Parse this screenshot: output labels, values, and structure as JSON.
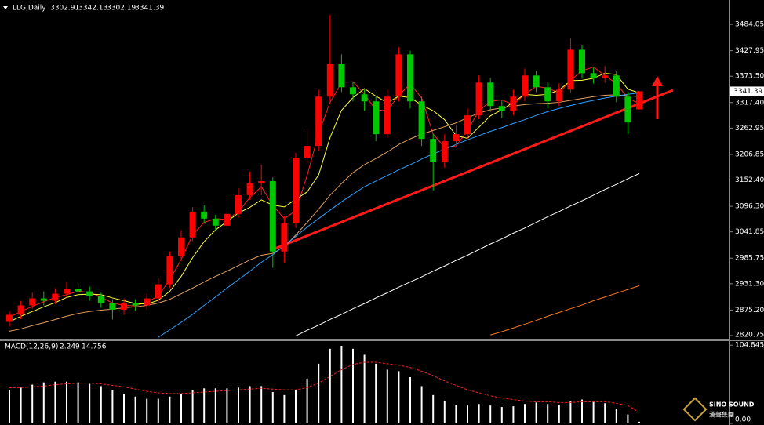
{
  "chart_data": [
    {
      "type": "candlestick",
      "title": "LLG,Daily",
      "up_color": "#ff0000",
      "down_color": "#00c800",
      "open": [
        2850,
        2865,
        2885,
        2900,
        2895,
        2910,
        2920,
        2915,
        2905,
        2890,
        2876,
        2890,
        2885,
        2900,
        2930,
        2990,
        3030,
        3085,
        3070,
        3055,
        3080,
        3120,
        3145,
        3150,
        3000,
        3060,
        3200,
        3225,
        3330,
        3400,
        3350,
        3335,
        3320,
        3250,
        3330,
        3420,
        3320,
        3240,
        3190,
        3235,
        3250,
        3290,
        3360,
        3310,
        3300,
        3330,
        3375,
        3350,
        3320,
        3345,
        3430,
        3380,
        3370,
        3375,
        3330,
        3302.91
      ],
      "high": [
        2872,
        2895,
        2912,
        2915,
        2922,
        2935,
        2932,
        2925,
        2912,
        2898,
        2900,
        2898,
        2910,
        2942,
        3000,
        3045,
        3095,
        3098,
        3078,
        3092,
        3135,
        3170,
        3185,
        3158,
        3075,
        3210,
        3262,
        3345,
        3504,
        3420,
        3362,
        3345,
        3330,
        3345,
        3435,
        3428,
        3330,
        3250,
        3250,
        3268,
        3305,
        3375,
        3370,
        3322,
        3345,
        3390,
        3385,
        3360,
        3358,
        3455,
        3440,
        3392,
        3395,
        3385,
        3340,
        3342.13
      ],
      "low": [
        2840,
        2856,
        2878,
        2885,
        2888,
        2902,
        2905,
        2895,
        2880,
        2855,
        2865,
        2874,
        2876,
        2892,
        2922,
        2980,
        3022,
        3060,
        3045,
        3048,
        3072,
        3110,
        3120,
        2965,
        2975,
        3050,
        3188,
        3215,
        3320,
        3340,
        3320,
        3300,
        3235,
        3242,
        3320,
        3305,
        3225,
        3130,
        3178,
        3225,
        3240,
        3282,
        3298,
        3285,
        3290,
        3320,
        3340,
        3305,
        3310,
        3338,
        3368,
        3358,
        3360,
        3318,
        3250,
        3302.19
      ],
      "close": [
        2865,
        2885,
        2900,
        2895,
        2910,
        2920,
        2915,
        2905,
        2890,
        2876,
        2890,
        2885,
        2900,
        2930,
        2990,
        3030,
        3085,
        3070,
        3055,
        3080,
        3120,
        3145,
        3150,
        3000,
        3060,
        3200,
        3225,
        3330,
        3400,
        3350,
        3335,
        3320,
        3250,
        3330,
        3420,
        3320,
        3240,
        3190,
        3235,
        3250,
        3290,
        3360,
        3310,
        3300,
        3330,
        3375,
        3350,
        3320,
        3345,
        3430,
        3380,
        3370,
        3375,
        3330,
        3275,
        3341.39
      ],
      "series": [
        {
          "color": "#ff2020",
          "values": [
            2860,
            2872,
            2883,
            2893,
            2902,
            2908,
            2915,
            2913,
            2903,
            2890,
            2885,
            2884,
            2892,
            2905,
            2940,
            2983,
            3035,
            3062,
            3070,
            3068,
            3085,
            3115,
            3138,
            3098,
            3070,
            3087,
            3162,
            3252,
            3318,
            3360,
            3362,
            3335,
            3302,
            3300,
            3333,
            3357,
            3327,
            3250,
            3222,
            3225,
            3258,
            3300,
            3320,
            3323,
            3313,
            3335,
            3352,
            3348,
            3338,
            3365,
            3385,
            3393,
            3375,
            3358,
            3327,
            3315
          ]
        },
        {
          "color": "#ffff40",
          "values": [
            2850,
            2862,
            2872,
            2882,
            2891,
            2902,
            2908,
            2909,
            2908,
            2901,
            2895,
            2889,
            2888,
            2896,
            2915,
            2947,
            2987,
            3021,
            3046,
            3064,
            3082,
            3094,
            3110,
            3099,
            3095,
            3111,
            3127,
            3163,
            3243,
            3301,
            3328,
            3347,
            3331,
            3317,
            3331,
            3328,
            3312,
            3300,
            3281,
            3247,
            3241,
            3265,
            3289,
            3302,
            3318,
            3335,
            3333,
            3335,
            3344,
            3364,
            3365,
            3369,
            3380,
            3377,
            3346,
            3338
          ]
        },
        {
          "color": "#e0a060",
          "values": [
            2830,
            2835,
            2842,
            2848,
            2855,
            2862,
            2868,
            2872,
            2875,
            2877,
            2880,
            2882,
            2885,
            2890,
            2898,
            2910,
            2922,
            2935,
            2947,
            2958,
            2970,
            2982,
            2992,
            2996,
            3010,
            3035,
            3062,
            3090,
            3120,
            3145,
            3168,
            3185,
            3198,
            3212,
            3228,
            3240,
            3250,
            3258,
            3266,
            3274,
            3285,
            3295,
            3302,
            3306,
            3310,
            3313,
            3315,
            3316,
            3318,
            3322,
            3326,
            3330,
            3333,
            3334,
            3332,
            3330
          ]
        },
        {
          "color": "#30a0ff",
          "values": [
            null,
            null,
            null,
            null,
            null,
            null,
            null,
            null,
            null,
            null,
            null,
            null,
            null,
            2817,
            2833,
            2849,
            2866,
            2885,
            2903,
            2922,
            2940,
            2958,
            2977,
            2993,
            3013,
            3032,
            3052,
            3070,
            3088,
            3106,
            3122,
            3138,
            3150,
            3162,
            3174,
            3185,
            3197,
            3208,
            3218,
            3228,
            3238,
            3247,
            3256,
            3264,
            3273,
            3281,
            3290,
            3298,
            3305,
            3311,
            3317,
            3322,
            3327,
            3331,
            3335,
            3338
          ]
        },
        {
          "color": "#ffffff",
          "values": [
            null,
            null,
            null,
            null,
            null,
            null,
            null,
            null,
            null,
            null,
            null,
            null,
            null,
            null,
            null,
            null,
            null,
            null,
            null,
            null,
            null,
            null,
            null,
            null,
            null,
            2820,
            2832,
            2843,
            2855,
            2866,
            2878,
            2889,
            2901,
            2912,
            2924,
            2935,
            2946,
            2958,
            2969,
            2981,
            2992,
            3004,
            3016,
            3027,
            3039,
            3050,
            3062,
            3074,
            3085,
            3097,
            3108,
            3120,
            3132,
            3143,
            3155,
            3166
          ]
        },
        {
          "color": "#ff7a20",
          "values": [
            null,
            null,
            null,
            null,
            null,
            null,
            null,
            null,
            null,
            null,
            null,
            null,
            null,
            null,
            null,
            null,
            null,
            null,
            null,
            null,
            null,
            null,
            null,
            null,
            null,
            null,
            null,
            null,
            null,
            null,
            null,
            null,
            null,
            null,
            null,
            null,
            null,
            null,
            null,
            null,
            null,
            null,
            2822,
            2829,
            2837,
            2845,
            2853,
            2862,
            2870,
            2878,
            2886,
            2895,
            2903,
            2911,
            2919,
            2927
          ]
        }
      ],
      "ylim": [
        2814,
        3536
      ],
      "yticks": [
        3484.05,
        3427.95,
        {
          "value": 3373.5,
          "label": "3373.50"
        },
        {
          "value": 3317.4,
          "label": "3317.40"
        },
        3262.95,
        3206.85,
        {
          "value": 3152.4,
          "label": "3152.40"
        },
        {
          "value": 3096.3,
          "label": "3096.30"
        },
        3041.85,
        2985.75,
        {
          "value": 2931.3,
          "label": "2931.30"
        },
        {
          "value": 2875.2,
          "label": "2875.20"
        },
        2820.75
      ],
      "grid": false
    },
    {
      "type": "bar",
      "title": "MACD(12,26,9)",
      "series": [
        {
          "type": "bar",
          "color": "#ffffff",
          "values": [
            45,
            48,
            52,
            55,
            56,
            56,
            55,
            53,
            50,
            45,
            40,
            36,
            33,
            33,
            36,
            40,
            45,
            47,
            47,
            47,
            48,
            50,
            50,
            42,
            38,
            45,
            60,
            80,
            100,
            104,
            100,
            92,
            80,
            72,
            70,
            62,
            50,
            38,
            30,
            25,
            24,
            26,
            24,
            22,
            23,
            26,
            28,
            26,
            25,
            30,
            32,
            30,
            27,
            20,
            12,
            2.249
          ]
        },
        {
          "type": "line",
          "color": "#ff2020",
          "values": [
            48,
            48,
            49,
            50,
            52,
            53,
            54,
            54,
            53,
            51,
            49,
            46,
            43,
            41,
            40,
            40,
            41,
            42,
            43,
            44,
            45,
            46,
            47,
            46,
            45,
            45,
            48,
            54,
            63,
            72,
            79,
            82,
            82,
            80,
            78,
            75,
            70,
            64,
            57,
            51,
            45,
            41,
            37,
            34,
            32,
            30,
            29,
            29,
            28,
            28,
            29,
            29,
            29,
            27,
            24,
            14.756
          ]
        }
      ],
      "ylim": [
        0,
        111.4
      ],
      "yticks": [
        104.845,
        {
          "value": 0,
          "label": "0.00"
        }
      ]
    }
  ],
  "watermark": {
    "brand": "SINO SOUND",
    "sub": "漢聲集團"
  }
}
